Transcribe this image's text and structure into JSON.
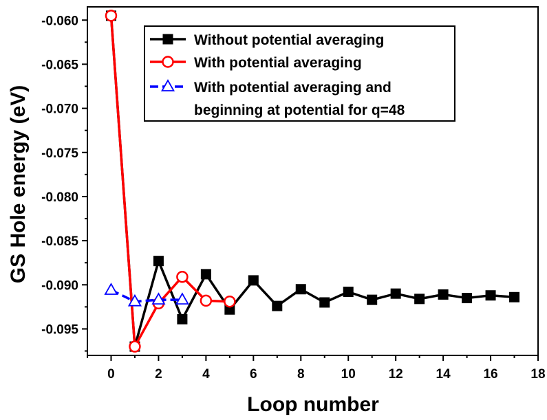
{
  "chart_data": {
    "type": "line",
    "xlabel": "Loop number",
    "ylabel": "GS Hole energy (eV)",
    "xlim": [
      -1,
      18
    ],
    "ylim": [
      -0.098,
      -0.0585
    ],
    "xticks": [
      0,
      2,
      4,
      6,
      8,
      10,
      12,
      14,
      16,
      18
    ],
    "yticks": [
      -0.095,
      -0.09,
      -0.085,
      -0.08,
      -0.075,
      -0.07,
      -0.065,
      -0.06
    ],
    "xtick_labels": [
      "0",
      "2",
      "4",
      "6",
      "8",
      "10",
      "12",
      "14",
      "16",
      "18"
    ],
    "ytick_labels": [
      "-0.095",
      "-0.090",
      "-0.085",
      "-0.080",
      "-0.075",
      "-0.070",
      "-0.065",
      "-0.060"
    ],
    "legend_position": "top-right",
    "series": [
      {
        "name": "Without potential averaging",
        "color": "#000000",
        "marker": "square-filled",
        "x": [
          0,
          1,
          2,
          3,
          4,
          5,
          6,
          7,
          8,
          9,
          10,
          11,
          12,
          13,
          14,
          15,
          16,
          17
        ],
        "y": [
          -0.0595,
          -0.097,
          -0.0873,
          -0.0939,
          -0.0888,
          -0.0928,
          -0.0895,
          -0.0924,
          -0.0905,
          -0.092,
          -0.0908,
          -0.0917,
          -0.091,
          -0.0916,
          -0.0911,
          -0.0915,
          -0.0912,
          -0.0914
        ]
      },
      {
        "name": "With potential averaging",
        "color": "#ff0000",
        "marker": "circle-open",
        "x": [
          0,
          1,
          2,
          3,
          4,
          5
        ],
        "y": [
          -0.0595,
          -0.097,
          -0.0921,
          -0.0891,
          -0.0918,
          -0.0919
        ]
      },
      {
        "name": "With potential averaging and beginning at potential for q=48",
        "legend_lines": [
          "With potential averaging and",
          "beginning at potential for q=48"
        ],
        "color": "#0000ff",
        "marker": "triangle-open",
        "x": [
          0,
          1,
          2,
          3
        ],
        "y": [
          -0.0906,
          -0.0919,
          -0.0917,
          -0.0917
        ]
      }
    ]
  }
}
